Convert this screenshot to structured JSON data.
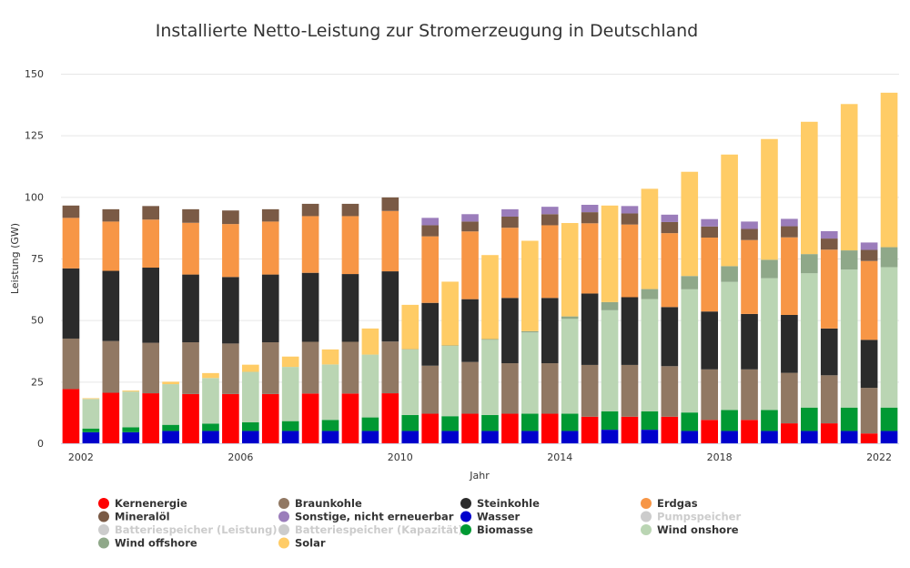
{
  "chart_data": {
    "type": "bar",
    "stacked": true,
    "title": "Installierte Netto-Leistung zur Stromerzeugung in Deutschland",
    "xlabel": "Jahr",
    "ylabel": "Leistung (GW)",
    "ylim": [
      0,
      150
    ],
    "yticks": [
      "0",
      "25",
      "50",
      "75",
      "100",
      "125",
      "150"
    ],
    "xticks": [
      "2002",
      "2006",
      "2010",
      "2014",
      "2018",
      "2022"
    ],
    "grid": true,
    "legend_position": "bottom",
    "groups": [
      {
        "label": "2002",
        "conv": true
      },
      {
        "label": "2002",
        "conv": false
      },
      {
        "label": "2003",
        "conv": true
      },
      {
        "label": "2003",
        "conv": false
      },
      {
        "label": "2004",
        "conv": true
      },
      {
        "label": "2004",
        "conv": false
      },
      {
        "label": "2005",
        "conv": true
      },
      {
        "label": "2005",
        "conv": false
      },
      {
        "label": "2006",
        "conv": true
      },
      {
        "label": "2006",
        "conv": false
      },
      {
        "label": "2007",
        "conv": true
      },
      {
        "label": "2007",
        "conv": false
      },
      {
        "label": "2008",
        "conv": true
      },
      {
        "label": "2008",
        "conv": false
      },
      {
        "label": "2009",
        "conv": true
      },
      {
        "label": "2009",
        "conv": false
      },
      {
        "label": "2010",
        "conv": true
      },
      {
        "label": "2010",
        "conv": false
      },
      {
        "label": "2011",
        "conv": true
      },
      {
        "label": "2011",
        "conv": false
      },
      {
        "label": "2012",
        "conv": true
      },
      {
        "label": "2012",
        "conv": false
      },
      {
        "label": "2013",
        "conv": true
      },
      {
        "label": "2013",
        "conv": false
      },
      {
        "label": "2014",
        "conv": true
      },
      {
        "label": "2014",
        "conv": false
      },
      {
        "label": "2015",
        "conv": true
      },
      {
        "label": "2015",
        "conv": false
      },
      {
        "label": "2016",
        "conv": true
      },
      {
        "label": "2016",
        "conv": false
      },
      {
        "label": "2017",
        "conv": true
      },
      {
        "label": "2017",
        "conv": false
      },
      {
        "label": "2018",
        "conv": true
      },
      {
        "label": "2018",
        "conv": false
      },
      {
        "label": "2019",
        "conv": true
      },
      {
        "label": "2019",
        "conv": false
      },
      {
        "label": "2020",
        "conv": true
      },
      {
        "label": "2020",
        "conv": false
      },
      {
        "label": "2021",
        "conv": true
      },
      {
        "label": "2021",
        "conv": false
      },
      {
        "label": "2022",
        "conv": true
      },
      {
        "label": "2022",
        "conv": false
      }
    ],
    "series": [
      {
        "name": "Kernenergie",
        "color": "#ff0000",
        "visible": true,
        "conventional": [
          22,
          20.5,
          20.3,
          20,
          20,
          20,
          20.2,
          20.2,
          20.3,
          12,
          12,
          12,
          12,
          10.8,
          10.8,
          10.8,
          9.5,
          9.5,
          8.1,
          8.1,
          4
        ],
        "renewable": [
          0,
          0,
          0,
          0,
          0,
          0,
          0,
          0,
          0,
          0,
          0,
          0,
          0,
          0,
          0,
          0,
          0,
          0,
          0,
          0,
          0
        ]
      },
      {
        "name": "Braunkohle",
        "color": "#917863",
        "visible": true,
        "conventional": [
          20.5,
          21,
          20.5,
          21,
          20.5,
          21,
          21,
          21,
          21,
          19.5,
          21,
          20.5,
          20.5,
          21,
          21,
          20.5,
          20.5,
          20.5,
          20.5,
          19.5,
          18.5
        ],
        "renewable": [
          0,
          0,
          0,
          0,
          0,
          0,
          0,
          0,
          0,
          0,
          0,
          0,
          0,
          0,
          0,
          0,
          0,
          0,
          0,
          0,
          0
        ]
      },
      {
        "name": "Steinkohle",
        "color": "#2b2b2b",
        "visible": true,
        "conventional": [
          28.5,
          28.5,
          30.5,
          27.5,
          27,
          27.5,
          28,
          27.5,
          28.5,
          25.5,
          25.5,
          26.5,
          26.5,
          29,
          27.5,
          24,
          23.5,
          22.5,
          23.5,
          19,
          19.5
        ],
        "renewable": [
          0,
          0,
          0,
          0,
          0,
          0,
          0,
          0,
          0,
          0,
          0,
          0,
          0,
          0,
          0,
          0,
          0,
          0,
          0,
          0,
          0
        ]
      },
      {
        "name": "Erdgas",
        "color": "#f79646",
        "visible": true,
        "conventional": [
          20.5,
          20,
          19.5,
          21,
          21.5,
          21.5,
          23,
          23.5,
          24.5,
          27,
          27.5,
          28.5,
          29.5,
          28.5,
          29.5,
          30,
          30,
          30,
          31.5,
          32,
          32
        ],
        "renewable": [
          0,
          0,
          0,
          0,
          0,
          0,
          0,
          0,
          0,
          0,
          0,
          0,
          0,
          0,
          0,
          0,
          0,
          0,
          0,
          0,
          0
        ]
      },
      {
        "name": "Mineralöl",
        "color": "#7a5a45",
        "visible": true,
        "conventional": [
          5,
          5,
          5.5,
          5.5,
          5.5,
          5,
          5,
          5,
          5.5,
          4.5,
          4,
          4.5,
          4.5,
          4.5,
          4.5,
          4.5,
          4.5,
          4.5,
          4.5,
          4.5,
          4.5
        ],
        "renewable": [
          0,
          0,
          0,
          0,
          0,
          0,
          0,
          0,
          0,
          0,
          0,
          0,
          0,
          0,
          0,
          0,
          0,
          0,
          0,
          0,
          0
        ]
      },
      {
        "name": "Sonstige, nicht erneuerbar",
        "color": "#9b7dbb",
        "visible": true,
        "conventional": [
          0,
          0,
          0,
          0,
          0,
          0,
          0,
          0,
          0,
          3,
          3,
          3,
          3,
          3,
          3,
          3,
          3,
          3,
          3,
          3,
          3
        ],
        "renewable": [
          0,
          0,
          0,
          0,
          0,
          0,
          0,
          0,
          0,
          0,
          0,
          0,
          0,
          0,
          0,
          0,
          0,
          0,
          0,
          0,
          0
        ]
      },
      {
        "name": "Wasser",
        "color": "#0000cc",
        "visible": true,
        "conventional": [
          0,
          0,
          0,
          0,
          0,
          0,
          0,
          0,
          0,
          0,
          0,
          0,
          0,
          0,
          0,
          0,
          0,
          0,
          0,
          0,
          0
        ],
        "renewable": [
          4.5,
          4.5,
          5,
          5,
          5,
          5,
          5,
          5,
          5,
          5,
          5,
          5,
          5,
          5.5,
          5.5,
          5,
          5,
          5,
          5,
          5,
          5
        ]
      },
      {
        "name": "Pumpspeicher",
        "color": "#c0c0c0",
        "visible": false,
        "conventional": [
          0,
          0,
          0,
          0,
          0,
          0,
          0,
          0,
          0,
          0,
          0,
          0,
          0,
          0,
          0,
          0,
          0,
          0,
          0,
          0,
          0
        ],
        "renewable": [
          0,
          0,
          0,
          0,
          0,
          0,
          0,
          0,
          0,
          0,
          0,
          0,
          0,
          0,
          0,
          0,
          0,
          0,
          0,
          0,
          0
        ]
      },
      {
        "name": "Batteriespeicher (Leistung)",
        "color": "#c0c0c0",
        "visible": false,
        "conventional": [
          0,
          0,
          0,
          0,
          0,
          0,
          0,
          0,
          0,
          0,
          0,
          0,
          0,
          0,
          0,
          0,
          0,
          0,
          0,
          0,
          0
        ],
        "renewable": [
          0,
          0,
          0,
          0,
          0,
          0,
          0,
          0,
          0,
          0,
          0,
          0,
          0,
          0,
          0,
          0,
          0,
          0,
          0,
          0,
          0
        ]
      },
      {
        "name": "Batteriespeicher (Kapazität)",
        "color": "#c0c0c0",
        "visible": false,
        "conventional": [
          0,
          0,
          0,
          0,
          0,
          0,
          0,
          0,
          0,
          0,
          0,
          0,
          0,
          0,
          0,
          0,
          0,
          0,
          0,
          0,
          0
        ],
        "renewable": [
          0,
          0,
          0,
          0,
          0,
          0,
          0,
          0,
          0,
          0,
          0,
          0,
          0,
          0,
          0,
          0,
          0,
          0,
          0,
          0,
          0
        ]
      },
      {
        "name": "Biomasse",
        "color": "#009933",
        "visible": true,
        "conventional": [
          0,
          0,
          0,
          0,
          0,
          0,
          0,
          0,
          0,
          0,
          0,
          0,
          0,
          0,
          0,
          0,
          0,
          0,
          0,
          0,
          0
        ],
        "renewable": [
          1.5,
          2,
          2.5,
          3,
          3.5,
          4,
          4.5,
          5.5,
          6.5,
          6,
          6.5,
          7,
          7,
          7.5,
          7.5,
          7.5,
          8.5,
          8.5,
          9.5,
          9.5,
          9.5
        ]
      },
      {
        "name": "Wind onshore",
        "color": "#bad5b3",
        "visible": true,
        "conventional": [
          0,
          0,
          0,
          0,
          0,
          0,
          0,
          0,
          0,
          0,
          0,
          0,
          0,
          0,
          0,
          0,
          0,
          0,
          0,
          0,
          0
        ],
        "renewable": [
          12,
          14.5,
          16.5,
          18.5,
          20.5,
          22,
          22.5,
          25.5,
          26.5,
          28.5,
          30.5,
          33,
          38.5,
          41,
          45.5,
          50,
          52,
          53.5,
          54.5,
          56,
          57
        ]
      },
      {
        "name": "Wind offshore",
        "color": "#8fa889",
        "visible": true,
        "conventional": [
          0,
          0,
          0,
          0,
          0,
          0,
          0,
          0,
          0,
          0,
          0,
          0,
          0,
          0,
          0,
          0,
          0,
          0,
          0,
          0,
          0
        ],
        "renewable": [
          0,
          0,
          0,
          0,
          0,
          0,
          0,
          0,
          0.2,
          0.2,
          0.3,
          0.5,
          1,
          3.3,
          4.1,
          5.4,
          6.4,
          7.5,
          7.8,
          7.8,
          8.1
        ]
      },
      {
        "name": "Solar",
        "color": "#ffcc66",
        "visible": true,
        "conventional": [
          0,
          0,
          0,
          0,
          0,
          0,
          0,
          0,
          0,
          0,
          0,
          0,
          0,
          0,
          0,
          0,
          0,
          0,
          0,
          0,
          0
        ],
        "renewable": [
          0.3,
          0.4,
          1,
          2,
          2.9,
          4.2,
          6.1,
          10.6,
          18,
          25.9,
          34.1,
          36.7,
          37.9,
          39.2,
          40.7,
          42.3,
          45.3,
          49,
          53.7,
          59.4,
          62.7
        ]
      }
    ]
  }
}
